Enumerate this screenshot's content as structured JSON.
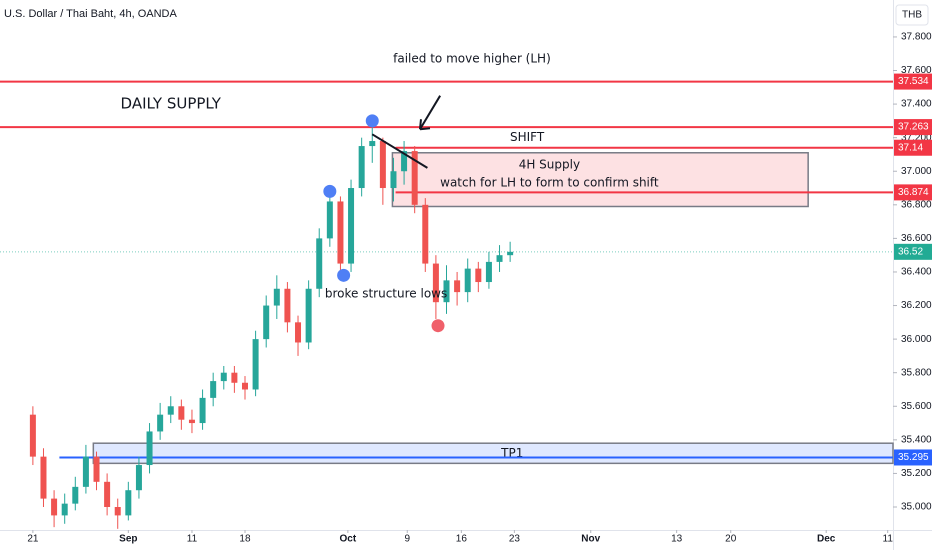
{
  "chart_data": {
    "type": "candlestick",
    "title": "U.S. Dollar / Thai Baht, 4h, OANDA",
    "currency": "THB",
    "x": [
      0,
      1,
      2,
      3,
      4,
      5,
      6,
      7,
      8,
      9,
      10,
      11,
      12,
      13,
      14,
      15,
      16,
      17,
      18,
      19,
      20,
      21,
      22,
      23,
      24,
      25,
      26,
      27,
      28,
      29,
      30,
      31,
      32,
      33,
      34,
      35,
      36,
      37,
      38,
      39,
      40,
      41,
      42,
      43,
      44,
      45
    ],
    "open": [
      35.55,
      35.3,
      35.05,
      34.95,
      35.02,
      35.12,
      35.3,
      35.15,
      35.0,
      34.95,
      35.1,
      35.25,
      35.45,
      35.55,
      35.6,
      35.52,
      35.5,
      35.65,
      35.75,
      35.8,
      35.74,
      35.7,
      36.0,
      36.2,
      36.3,
      36.1,
      35.98,
      36.3,
      36.6,
      36.82,
      36.45,
      36.9,
      37.15,
      37.18,
      36.9,
      37.0,
      37.12,
      36.8,
      36.45,
      36.22,
      36.35,
      36.28,
      36.42,
      36.34,
      36.46,
      36.5
    ],
    "high": [
      35.6,
      35.35,
      35.1,
      35.08,
      35.18,
      35.37,
      35.33,
      35.2,
      35.05,
      35.15,
      35.3,
      35.5,
      35.62,
      35.66,
      35.64,
      35.58,
      35.7,
      35.8,
      35.84,
      35.84,
      35.78,
      36.05,
      36.26,
      36.38,
      36.34,
      36.14,
      36.35,
      36.66,
      36.88,
      36.85,
      36.95,
      37.2,
      37.26,
      37.2,
      37.08,
      37.18,
      37.15,
      36.84,
      36.5,
      36.44,
      36.4,
      36.48,
      36.46,
      36.52,
      36.56,
      36.58
    ],
    "low": [
      35.25,
      35.0,
      34.88,
      34.9,
      34.98,
      35.08,
      35.1,
      34.95,
      34.87,
      34.92,
      35.05,
      35.2,
      35.4,
      35.5,
      35.46,
      35.44,
      35.46,
      35.6,
      35.7,
      35.68,
      35.64,
      35.66,
      35.95,
      36.12,
      36.04,
      35.9,
      35.94,
      36.25,
      36.55,
      36.38,
      36.4,
      36.85,
      37.05,
      36.8,
      36.82,
      36.92,
      36.75,
      36.4,
      36.12,
      36.15,
      36.2,
      36.22,
      36.28,
      36.3,
      36.4,
      36.46
    ],
    "close": [
      35.3,
      35.05,
      34.95,
      35.02,
      35.12,
      35.3,
      35.15,
      35.0,
      34.95,
      35.1,
      35.25,
      35.45,
      35.55,
      35.6,
      35.52,
      35.5,
      35.65,
      35.75,
      35.8,
      35.74,
      35.7,
      36.0,
      36.2,
      36.3,
      36.1,
      35.98,
      36.3,
      36.6,
      36.82,
      36.45,
      36.9,
      37.15,
      37.18,
      36.9,
      37.0,
      37.12,
      36.8,
      36.45,
      36.22,
      36.35,
      36.28,
      36.42,
      36.34,
      36.46,
      36.5,
      36.52
    ],
    "up_color": "#26a69a",
    "down_color": "#ef5350",
    "xlim": [
      -3.1,
      81.1
    ],
    "xticks": [
      {
        "value": 0,
        "label": "21"
      },
      {
        "value": 9,
        "label": "Sep"
      },
      {
        "value": 15,
        "label": "11"
      },
      {
        "value": 20,
        "label": "18"
      },
      {
        "value": 29.7,
        "label": "Oct"
      },
      {
        "value": 35.3,
        "label": "9"
      },
      {
        "value": 40.4,
        "label": "16"
      },
      {
        "value": 45.4,
        "label": "23"
      },
      {
        "value": 52.6,
        "label": "Nov"
      },
      {
        "value": 60.7,
        "label": "13"
      },
      {
        "value": 65.8,
        "label": "20"
      },
      {
        "value": 74.8,
        "label": "Dec"
      },
      {
        "value": 80.6,
        "label": "11"
      }
    ],
    "ylim": [
      34.863,
      38.02
    ],
    "yticks": [
      {
        "value": 35,
        "label": "35.000"
      },
      {
        "value": 35.2,
        "label": "35.200"
      },
      {
        "value": 35.4,
        "label": "35.400"
      },
      {
        "value": 35.6,
        "label": "35.600"
      },
      {
        "value": 35.8,
        "label": "35.800"
      },
      {
        "value": 36,
        "label": "36.000"
      },
      {
        "value": 36.2,
        "label": "36.200"
      },
      {
        "value": 36.4,
        "label": "36.400"
      },
      {
        "value": 36.6,
        "label": "36.600"
      },
      {
        "value": 36.8,
        "label": "36.800"
      },
      {
        "value": 37,
        "label": "37.000"
      },
      {
        "value": 37.2,
        "label": "37.200"
      },
      {
        "value": 37.4,
        "label": "37.400"
      },
      {
        "value": 37.6,
        "label": "37.600"
      },
      {
        "value": 37.8,
        "label": "37.800"
      }
    ],
    "levels": [
      {
        "value": 37.534,
        "color": "#f23645"
      },
      {
        "value": 37.263,
        "color": "#f23645"
      },
      {
        "value": 37.14,
        "color": "#f23645"
      },
      {
        "value": 36.874,
        "color": "#f23645"
      },
      {
        "value": 36.52,
        "color": "#22ab94"
      },
      {
        "value": 35.295,
        "color": "#2962ff"
      }
    ],
    "zones": [
      {
        "top": 37.11,
        "bottom": 36.79,
        "color": "#f23645",
        "labels": [
          "4H Supply",
          "watch for LH to form to confirm shift"
        ]
      },
      {
        "top": 35.38,
        "bottom": 35.26,
        "color": "#2962ff",
        "labels": [
          "TP1"
        ]
      }
    ],
    "markers": [
      {
        "x": 32,
        "y": 37.3,
        "color": "#4f7ff5"
      },
      {
        "x": 28,
        "y": 36.88,
        "color": "#4f7ff5"
      },
      {
        "x": 29.3,
        "y": 36.38,
        "color": "#4f7ff5"
      },
      {
        "x": 38.2,
        "y": 36.08,
        "color": "#f0606a"
      }
    ],
    "annotations": [
      "DAILY SUPPLY",
      "failed to move higher (LH)",
      "SHIFT",
      "broke structure lows"
    ]
  }
}
